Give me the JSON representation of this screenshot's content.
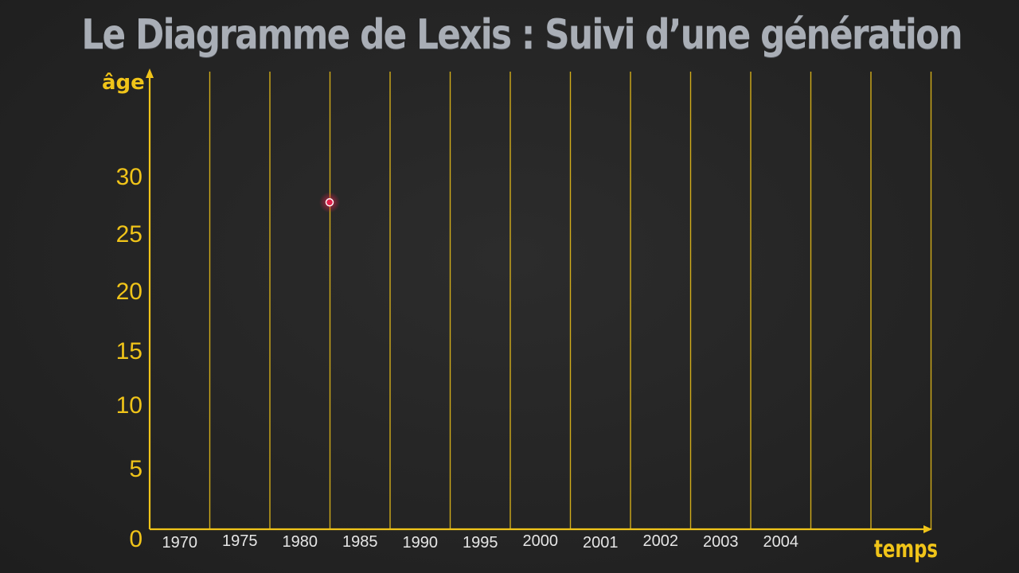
{
  "title": "Le Diagramme de Lexis : Suivi d’une génération",
  "colors": {
    "axis": "#f0c419",
    "grid": "#f0c419",
    "title": "#a9aeb6",
    "xtick_text": "#e6e6e6",
    "marker": "#e0204a"
  },
  "chart_data": {
    "type": "scatter",
    "ylabel": "âge",
    "xlabel": "temps",
    "x_tick_labels": [
      "1970",
      "1975",
      "1980",
      "1985",
      "1990",
      "1995",
      "2000",
      "2001",
      "2002",
      "2003",
      "2004"
    ],
    "y_ticks": [
      "0",
      "5",
      "10",
      "15",
      "20",
      "25",
      "30"
    ],
    "ylim": [
      0,
      40
    ],
    "grid": "vertical",
    "points": [],
    "pointer": {
      "x_between": [
        "1980",
        "1985"
      ],
      "y": 27.5
    }
  }
}
